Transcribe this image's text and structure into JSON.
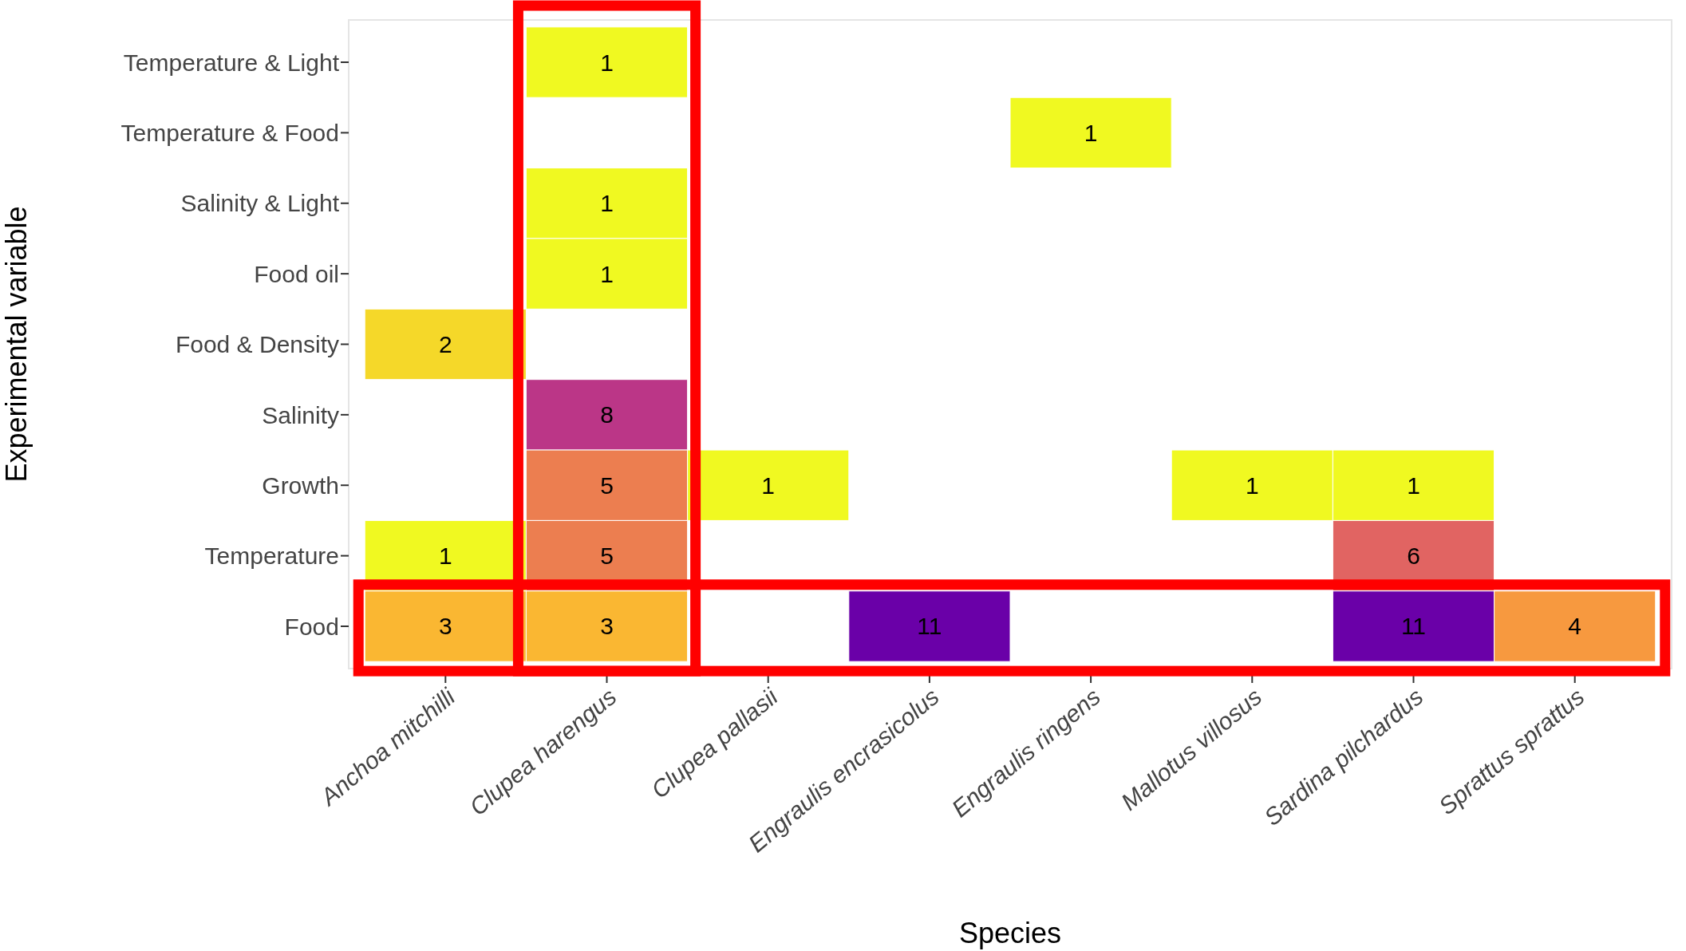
{
  "chart_data": {
    "type": "heatmap",
    "xlabel": "Species",
    "ylabel": "Experimental variable",
    "categories": [
      "Anchoa mitchilli",
      "Clupea harengus",
      "Clupea pallasii",
      "Engraulis encrasicolus",
      "Engraulis ringens",
      "Mallotus villosus",
      "Sardina pilchardus",
      "Sprattus sprattus"
    ],
    "y_categories": [
      "Temperature & Light",
      "Temperature & Food",
      "Salinity & Light",
      "Food oil",
      "Food & Density",
      "Salinity",
      "Growth",
      "Temperature",
      "Food"
    ],
    "cells": [
      [
        null,
        1,
        null,
        null,
        null,
        null,
        null,
        null
      ],
      [
        null,
        null,
        null,
        null,
        1,
        null,
        null,
        null
      ],
      [
        null,
        1,
        null,
        null,
        null,
        null,
        null,
        null
      ],
      [
        null,
        1,
        null,
        null,
        null,
        null,
        null,
        null
      ],
      [
        2,
        null,
        null,
        null,
        null,
        null,
        null,
        null
      ],
      [
        null,
        8,
        null,
        null,
        null,
        null,
        null,
        null
      ],
      [
        null,
        5,
        1,
        null,
        null,
        1,
        1,
        null
      ],
      [
        1,
        5,
        null,
        null,
        null,
        null,
        6,
        null
      ],
      [
        3,
        3,
        null,
        11,
        null,
        null,
        11,
        4
      ]
    ],
    "data_labels": true
  }
}
